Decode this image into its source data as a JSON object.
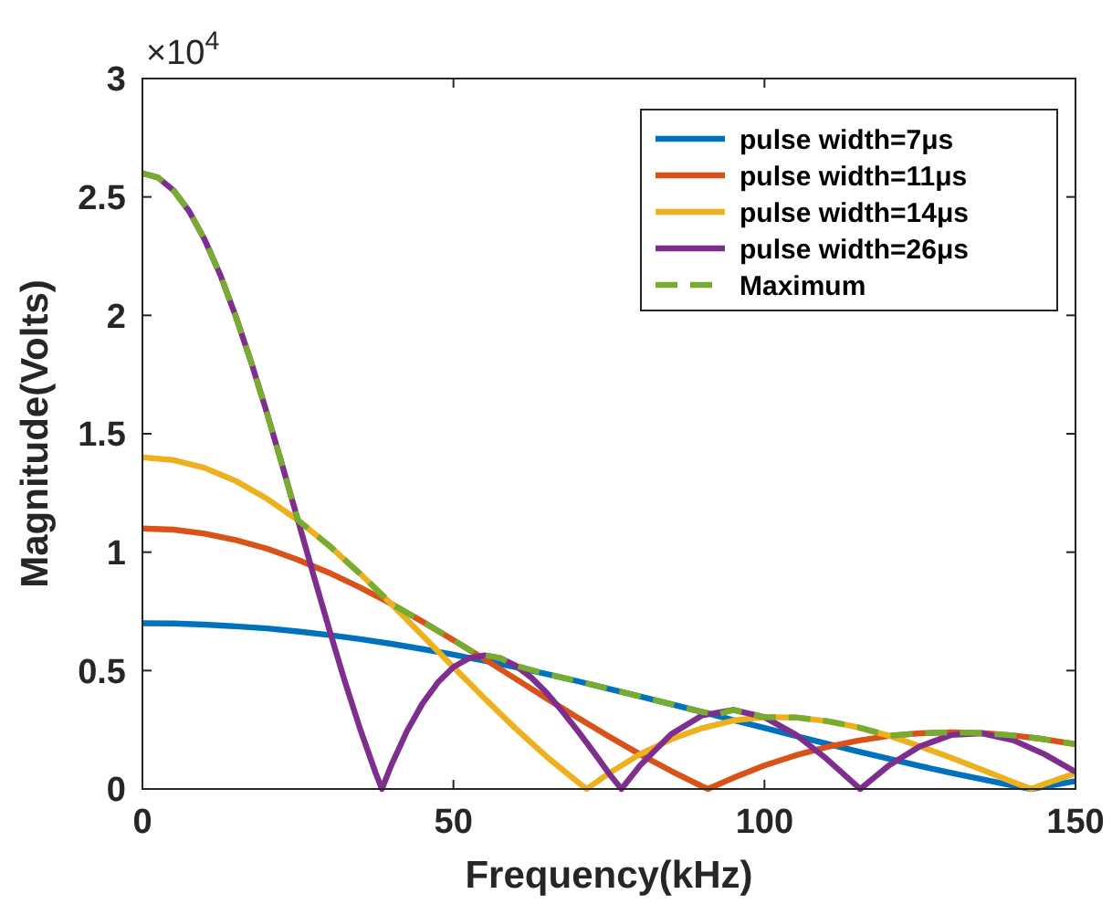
{
  "chart_data": {
    "type": "line",
    "xlabel": "Frequency(kHz)",
    "ylabel": "Magnitude(Volts)",
    "annotations": [
      "×10$^{4}$"
    ],
    "xlim": [
      0,
      150
    ],
    "xticks": [
      0,
      50,
      100,
      150
    ],
    "ylim": [
      0,
      3
    ],
    "yticks": [
      0,
      0.5,
      1,
      1.5,
      2,
      2.5,
      3
    ],
    "grid": false,
    "legend": "top right",
    "series": [
      {
        "name": "pulse width=7μs",
        "color": "#0072bd",
        "line_style": "solid",
        "x": [
          0,
          5,
          10,
          15,
          20,
          25,
          30,
          35,
          40,
          45,
          50,
          55,
          60,
          65,
          70,
          75,
          80,
          85,
          90,
          95,
          100,
          105,
          110,
          115,
          120,
          125,
          130,
          135,
          140,
          142.9,
          145,
          150
        ],
        "values": [
          0.7,
          0.699,
          0.694,
          0.687,
          0.678,
          0.665,
          0.65,
          0.633,
          0.613,
          0.591,
          0.567,
          0.541,
          0.514,
          0.485,
          0.455,
          0.423,
          0.391,
          0.358,
          0.325,
          0.291,
          0.258,
          0.224,
          0.191,
          0.159,
          0.128,
          0.097,
          0.068,
          0.041,
          0.014,
          0,
          0.01,
          0.033
        ]
      },
      {
        "name": "pulse width=11μs",
        "color": "#d95319",
        "line_style": "solid",
        "x": [
          0,
          5,
          10,
          15,
          20,
          25,
          30,
          35,
          40,
          45,
          50,
          55,
          60,
          65,
          70,
          75,
          80,
          85,
          90,
          90.9,
          95,
          100,
          105,
          110,
          115,
          120,
          125,
          130,
          135,
          140,
          145,
          150
        ],
        "values": [
          1.1,
          1.095,
          1.078,
          1.051,
          1.015,
          0.968,
          0.913,
          0.851,
          0.782,
          0.707,
          0.629,
          0.548,
          0.465,
          0.382,
          0.301,
          0.222,
          0.146,
          0.076,
          0.011,
          0,
          0.047,
          0.099,
          0.142,
          0.177,
          0.204,
          0.224,
          0.235,
          0.239,
          0.236,
          0.226,
          0.21,
          0.189
        ]
      },
      {
        "name": "pulse width=14μs",
        "color": "#edb120",
        "line_style": "solid",
        "x": [
          0,
          5,
          10,
          15,
          20,
          25,
          30,
          35,
          40,
          45,
          50,
          55,
          60,
          65,
          70,
          71.4,
          75,
          80,
          85,
          90,
          95,
          100,
          105,
          110,
          115,
          120,
          125,
          130,
          135,
          140,
          142.9,
          145,
          150
        ],
        "values": [
          1.4,
          1.389,
          1.356,
          1.301,
          1.226,
          1.135,
          1.028,
          0.909,
          0.782,
          0.649,
          0.515,
          0.383,
          0.255,
          0.136,
          0.029,
          0,
          0.066,
          0.147,
          0.21,
          0.257,
          0.289,
          0.303,
          0.302,
          0.287,
          0.261,
          0.225,
          0.18,
          0.132,
          0.081,
          0.029,
          0,
          0.021,
          0.066
        ]
      },
      {
        "name": "pulse width=26μs",
        "color": "#7e2f8e",
        "line_style": "solid",
        "x": [
          0,
          2.5,
          5,
          7.5,
          10,
          12.5,
          15,
          17.5,
          20,
          22.5,
          25,
          27.5,
          30,
          32.5,
          35,
          37.5,
          38.5,
          40,
          42.5,
          45,
          47.5,
          50,
          52.5,
          55,
          57.5,
          60,
          62.5,
          65,
          67.5,
          70,
          72.5,
          75,
          77,
          80,
          85,
          90,
          95,
          100,
          105,
          110,
          115,
          115.4,
          120,
          125,
          130,
          135,
          140,
          145,
          150
        ],
        "values": [
          2.6,
          2.582,
          2.528,
          2.44,
          2.32,
          2.172,
          1.996,
          1.801,
          1.589,
          1.365,
          1.135,
          0.904,
          0.677,
          0.458,
          0.253,
          0.067,
          0,
          0.1,
          0.243,
          0.36,
          0.45,
          0.515,
          0.552,
          0.564,
          0.553,
          0.521,
          0.471,
          0.406,
          0.328,
          0.245,
          0.157,
          0.066,
          0,
          0.099,
          0.231,
          0.311,
          0.334,
          0.303,
          0.23,
          0.127,
          0.009,
          0,
          0.099,
          0.18,
          0.228,
          0.235,
          0.206,
          0.147,
          0.072
        ]
      },
      {
        "name": "Maximum",
        "color": "#77ac30",
        "line_style": "dashed",
        "x": [
          0,
          2.5,
          5,
          7.5,
          10,
          12.5,
          15,
          17.5,
          20,
          22.5,
          25,
          30,
          35,
          40,
          45,
          50,
          54,
          55,
          57.5,
          60,
          65,
          70,
          75,
          80,
          85,
          90,
          92.5,
          95,
          100,
          105,
          110,
          115,
          120,
          125,
          130,
          135,
          140,
          145,
          150
        ],
        "values": [
          2.6,
          2.582,
          2.528,
          2.44,
          2.32,
          2.172,
          1.996,
          1.801,
          1.589,
          1.365,
          1.135,
          1.028,
          0.909,
          0.782,
          0.707,
          0.629,
          0.564,
          0.564,
          0.553,
          0.521,
          0.485,
          0.455,
          0.423,
          0.391,
          0.358,
          0.325,
          0.315,
          0.334,
          0.303,
          0.302,
          0.287,
          0.261,
          0.225,
          0.235,
          0.239,
          0.236,
          0.226,
          0.21,
          0.189
        ]
      }
    ]
  }
}
